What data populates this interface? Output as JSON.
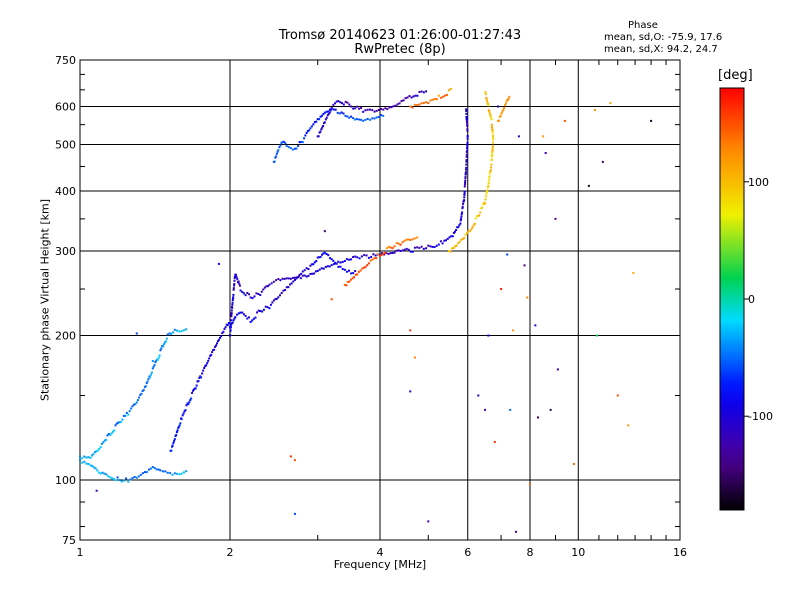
{
  "chart_data": {
    "type": "scatter",
    "title": "Tromsø 20140623 01:26:00-01:27:43",
    "subtitle": "RwPretec (8p)",
    "xlabel": "Frequency [MHz]",
    "ylabel": "Stationary phase Virtual Height [km]",
    "x_scale": "log",
    "y_scale": "log",
    "xlim": [
      1,
      16
    ],
    "ylim": [
      75,
      750
    ],
    "x_ticks": [
      "1",
      "2",
      "4",
      "6",
      "8",
      "10",
      "16"
    ],
    "y_ticks": [
      "75",
      "100",
      "200",
      "300",
      "400",
      "500",
      "600",
      "750"
    ],
    "grid": true,
    "colorbar": {
      "unit": "[deg]",
      "ticks": [
        "100",
        "0",
        "-100"
      ],
      "range": [
        -180,
        180
      ]
    },
    "phase_stats": {
      "title": "Phase",
      "line1": "mean, sd,O: -75.9, 17.6",
      "line2": "mean, sd,X:  94.2, 24.7"
    },
    "traces": [
      {
        "points": [
          [
            1.0,
            110
          ],
          [
            1.05,
            108
          ],
          [
            1.1,
            104
          ],
          [
            1.15,
            102
          ],
          [
            1.2,
            100
          ],
          [
            1.25,
            100
          ],
          [
            1.3,
            101
          ],
          [
            1.35,
            103
          ],
          [
            1.4,
            106
          ],
          [
            1.45,
            104
          ],
          [
            1.5,
            103
          ],
          [
            1.55,
            103
          ],
          [
            1.6,
            104
          ],
          [
            1.65,
            105
          ]
        ],
        "phase": -40
      },
      {
        "points": [
          [
            1.0,
            112
          ],
          [
            1.05,
            112
          ],
          [
            1.1,
            118
          ],
          [
            1.15,
            125
          ],
          [
            1.2,
            132
          ],
          [
            1.25,
            138
          ],
          [
            1.3,
            145
          ],
          [
            1.35,
            155
          ],
          [
            1.4,
            170
          ],
          [
            1.45,
            185
          ],
          [
            1.5,
            200
          ],
          [
            1.55,
            205
          ],
          [
            1.6,
            206
          ],
          [
            1.65,
            207
          ]
        ],
        "phase": -40
      },
      {
        "points": [
          [
            1.52,
            115
          ],
          [
            1.56,
            125
          ],
          [
            1.6,
            135
          ],
          [
            1.65,
            145
          ],
          [
            1.7,
            155
          ],
          [
            1.75,
            165
          ],
          [
            1.8,
            175
          ],
          [
            1.85,
            185
          ],
          [
            1.9,
            195
          ],
          [
            1.95,
            205
          ],
          [
            2.0,
            215
          ]
        ],
        "phase": -85
      },
      {
        "points": [
          [
            2.0,
            200
          ],
          [
            2.02,
            230
          ],
          [
            2.05,
            270
          ],
          [
            2.1,
            250
          ],
          [
            2.2,
            240
          ],
          [
            2.3,
            245
          ],
          [
            2.4,
            255
          ],
          [
            2.5,
            260
          ],
          [
            2.6,
            262
          ],
          [
            2.7,
            262
          ],
          [
            2.8,
            265
          ],
          [
            2.9,
            268
          ],
          [
            3.0,
            275
          ],
          [
            3.2,
            282
          ],
          [
            3.4,
            288
          ],
          [
            3.6,
            292
          ],
          [
            3.8,
            293
          ],
          [
            4.0,
            294
          ],
          [
            4.2,
            296
          ],
          [
            4.4,
            300
          ],
          [
            4.7,
            302
          ],
          [
            5.0,
            305
          ],
          [
            5.3,
            312
          ],
          [
            5.6,
            325
          ],
          [
            5.8,
            345
          ],
          [
            5.9,
            385
          ],
          [
            5.95,
            440
          ],
          [
            6.0,
            520
          ],
          [
            5.95,
            600
          ]
        ],
        "phase": -105
      },
      {
        "points": [
          [
            2.0,
            208
          ],
          [
            2.05,
            220
          ],
          [
            2.1,
            225
          ],
          [
            2.2,
            215
          ],
          [
            2.3,
            225
          ],
          [
            2.4,
            230
          ],
          [
            2.5,
            240
          ],
          [
            2.6,
            250
          ],
          [
            2.7,
            260
          ],
          [
            2.8,
            270
          ],
          [
            2.9,
            278
          ],
          [
            3.0,
            290
          ],
          [
            3.1,
            300
          ],
          [
            3.2,
            290
          ],
          [
            3.3,
            280
          ],
          [
            3.4,
            275
          ],
          [
            3.5,
            272
          ],
          [
            3.6,
            270
          ]
        ],
        "phase": -95
      },
      {
        "points": [
          [
            2.45,
            460
          ],
          [
            2.5,
            490
          ],
          [
            2.55,
            510
          ],
          [
            2.6,
            500
          ],
          [
            2.7,
            490
          ],
          [
            2.8,
            510
          ],
          [
            2.9,
            540
          ],
          [
            3.0,
            560
          ],
          [
            3.1,
            580
          ],
          [
            3.2,
            590
          ],
          [
            3.35,
            580
          ],
          [
            3.5,
            570
          ],
          [
            3.7,
            565
          ],
          [
            3.9,
            570
          ],
          [
            4.1,
            580
          ]
        ],
        "phase": -65
      },
      {
        "points": [
          [
            3.0,
            520
          ],
          [
            3.1,
            560
          ],
          [
            3.2,
            600
          ],
          [
            3.3,
            620
          ],
          [
            3.5,
            600
          ],
          [
            3.7,
            590
          ],
          [
            3.9,
            585
          ],
          [
            4.1,
            590
          ],
          [
            4.3,
            600
          ],
          [
            4.5,
            620
          ],
          [
            4.8,
            640
          ],
          [
            5.0,
            650
          ]
        ],
        "phase": -115
      },
      {
        "points": [
          [
            3.4,
            255
          ],
          [
            3.6,
            270
          ],
          [
            3.8,
            285
          ],
          [
            4.0,
            295
          ],
          [
            4.2,
            305
          ],
          [
            4.4,
            312
          ],
          [
            4.6,
            316
          ],
          [
            4.8,
            318
          ]
        ],
        "phase": 140
      },
      {
        "points": [
          [
            4.6,
            600
          ],
          [
            4.8,
            610
          ],
          [
            5.0,
            615
          ],
          [
            5.3,
            630
          ],
          [
            5.6,
            650
          ]
        ],
        "phase": 130
      },
      {
        "points": [
          [
            5.5,
            300
          ],
          [
            5.7,
            310
          ],
          [
            5.9,
            322
          ],
          [
            6.1,
            335
          ],
          [
            6.3,
            355
          ],
          [
            6.5,
            380
          ],
          [
            6.6,
            410
          ],
          [
            6.7,
            460
          ],
          [
            6.75,
            510
          ],
          [
            6.7,
            560
          ],
          [
            6.6,
            600
          ],
          [
            6.5,
            650
          ]
        ],
        "phase": 95
      },
      {
        "points": [
          [
            6.9,
            560
          ],
          [
            7.1,
            600
          ],
          [
            7.3,
            640
          ]
        ],
        "phase": 110
      }
    ],
    "scatter": [
      {
        "x": 3.2,
        "y": 238,
        "phase": 150
      },
      {
        "x": 2.65,
        "y": 112,
        "phase": 160
      },
      {
        "x": 2.7,
        "y": 110,
        "phase": 150
      },
      {
        "x": 4.6,
        "y": 205,
        "phase": 160
      },
      {
        "x": 4.7,
        "y": 180,
        "phase": 130
      },
      {
        "x": 4.6,
        "y": 153,
        "phase": -110
      },
      {
        "x": 5.0,
        "y": 82,
        "phase": -120
      },
      {
        "x": 6.3,
        "y": 150,
        "phase": -110
      },
      {
        "x": 6.5,
        "y": 140,
        "phase": -130
      },
      {
        "x": 6.8,
        "y": 120,
        "phase": 160
      },
      {
        "x": 7.0,
        "y": 250,
        "phase": 170
      },
      {
        "x": 7.3,
        "y": 140,
        "phase": -50
      },
      {
        "x": 7.5,
        "y": 78,
        "phase": -140
      },
      {
        "x": 7.9,
        "y": 240,
        "phase": 130
      },
      {
        "x": 8.0,
        "y": 98,
        "phase": 140
      },
      {
        "x": 8.3,
        "y": 135,
        "phase": -150
      },
      {
        "x": 8.5,
        "y": 520,
        "phase": 120
      },
      {
        "x": 8.6,
        "y": 480,
        "phase": -120
      },
      {
        "x": 8.8,
        "y": 140,
        "phase": -160
      },
      {
        "x": 9.0,
        "y": 350,
        "phase": -140
      },
      {
        "x": 9.4,
        "y": 560,
        "phase": 150
      },
      {
        "x": 9.8,
        "y": 108,
        "phase": 140
      },
      {
        "x": 10.5,
        "y": 410,
        "phase": -170
      },
      {
        "x": 10.8,
        "y": 590,
        "phase": 120
      },
      {
        "x": 10.9,
        "y": 200,
        "phase": 20
      },
      {
        "x": 11.2,
        "y": 460,
        "phase": -150
      },
      {
        "x": 11.6,
        "y": 610,
        "phase": 110
      },
      {
        "x": 12.0,
        "y": 150,
        "phase": 150
      },
      {
        "x": 12.6,
        "y": 130,
        "phase": 120
      },
      {
        "x": 12.9,
        "y": 270,
        "phase": 110
      },
      {
        "x": 14.0,
        "y": 560,
        "phase": -170
      },
      {
        "x": 7.2,
        "y": 295,
        "phase": -60
      },
      {
        "x": 7.8,
        "y": 280,
        "phase": -140
      },
      {
        "x": 8.2,
        "y": 210,
        "phase": -100
      },
      {
        "x": 6.6,
        "y": 200,
        "phase": -90
      },
      {
        "x": 3.1,
        "y": 330,
        "phase": -150
      },
      {
        "x": 1.9,
        "y": 282,
        "phase": -90
      },
      {
        "x": 1.08,
        "y": 95,
        "phase": -120
      },
      {
        "x": 1.3,
        "y": 202,
        "phase": -60
      },
      {
        "x": 1.4,
        "y": 177,
        "phase": -40
      },
      {
        "x": 2.7,
        "y": 85,
        "phase": -60
      },
      {
        "x": 7.4,
        "y": 205,
        "phase": 120
      },
      {
        "x": 6.9,
        "y": 600,
        "phase": -100
      },
      {
        "x": 7.6,
        "y": 520,
        "phase": -110
      },
      {
        "x": 9.1,
        "y": 170,
        "phase": -120
      }
    ]
  }
}
